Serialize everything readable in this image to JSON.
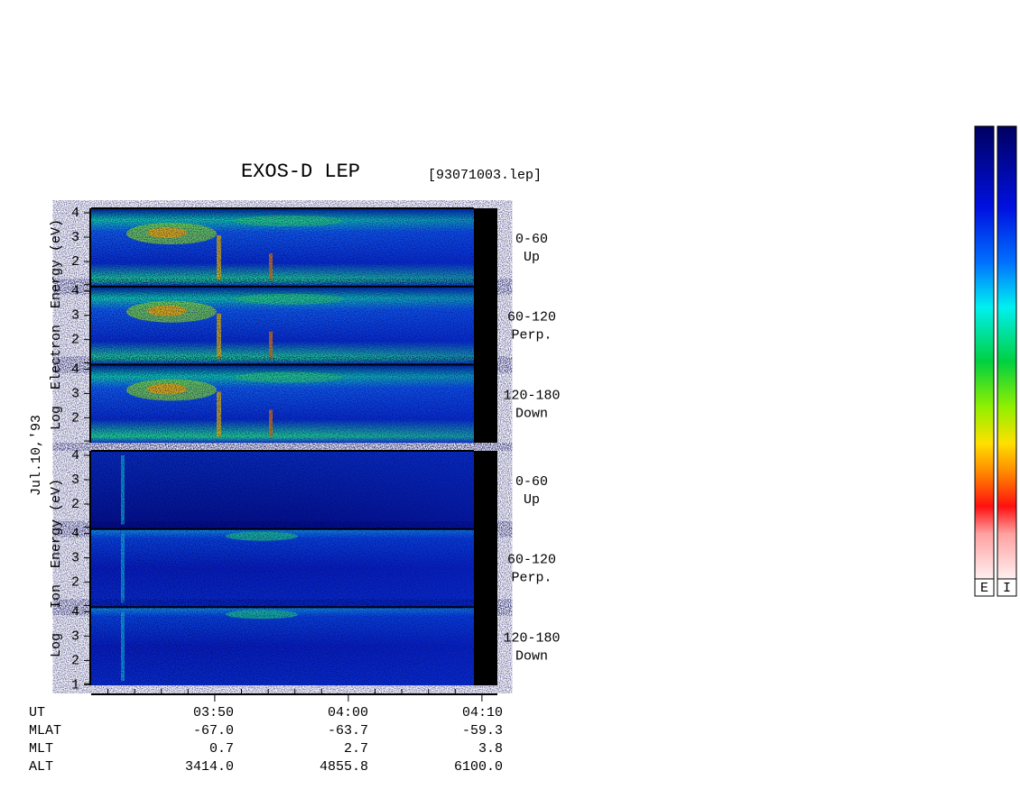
{
  "header": {
    "title": "EXOS-D LEP",
    "file": "[93071003.lep]"
  },
  "date": "Jul.10,'93",
  "electron": {
    "axis_label": "Log  Electron  Energy (eV)",
    "panels": [
      {
        "angle": "0-60",
        "direction": "Up",
        "ticks": [
          "4",
          "3",
          "2"
        ]
      },
      {
        "angle": "60-120",
        "direction": "Perp.",
        "ticks": [
          "4",
          "3",
          "2"
        ]
      },
      {
        "angle": "120-180",
        "direction": "Down",
        "ticks": [
          "4",
          "3",
          "2"
        ]
      }
    ]
  },
  "ion": {
    "axis_label": "Log   Ion  Energy (eV)",
    "panels": [
      {
        "angle": "0-60",
        "direction": "Up",
        "ticks": [
          "4",
          "3",
          "2"
        ]
      },
      {
        "angle": "60-120",
        "direction": "Perp.",
        "ticks": [
          "4",
          "3",
          "2"
        ]
      },
      {
        "angle": "120-180",
        "direction": "Down",
        "ticks": [
          "4",
          "3",
          "2",
          "1"
        ]
      }
    ]
  },
  "ephemeris": {
    "rows": [
      [
        "UT",
        "03:50",
        "04:00",
        "04:10"
      ],
      [
        "MLAT",
        "-67.0",
        "-63.7",
        "-59.3"
      ],
      [
        "MLT",
        "0.7",
        "2.7",
        "3.8"
      ],
      [
        "ALT",
        "3414.0",
        "4855.8",
        "6100.0"
      ]
    ]
  },
  "colorbars": [
    "E",
    "I"
  ]
}
